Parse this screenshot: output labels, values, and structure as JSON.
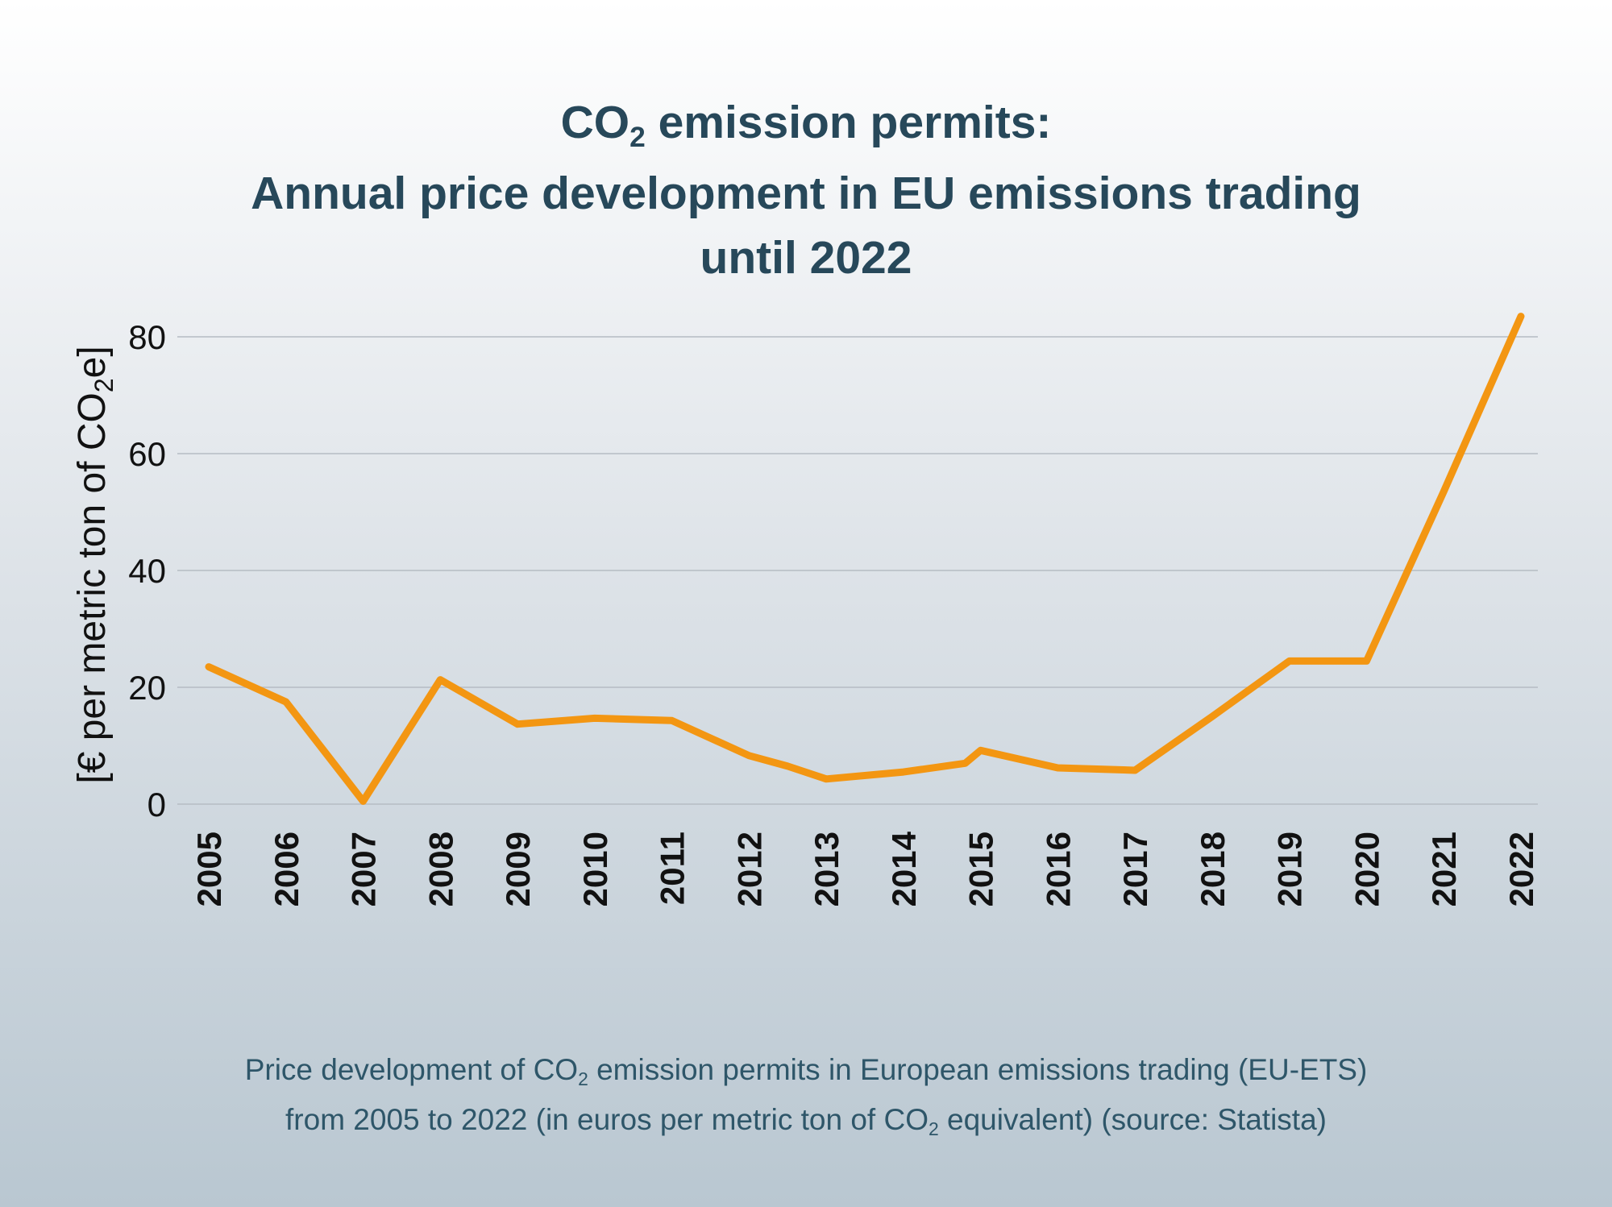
{
  "title": {
    "line1_pre": "CO",
    "line1_sub": "2",
    "line1_post": " emission permits:",
    "line2": "Annual price development in EU emissions trading",
    "line3": "until 2022"
  },
  "caption": {
    "line1_pre": "Price development of CO",
    "line1_sub": "2",
    "line1_post": " emission permits in European emissions trading (EU-ETS)",
    "line2_pre": "from 2005 to 2022 (in euros per metric ton of CO",
    "line2_sub": "2",
    "line2_post": " equivalent) (source: Statista)"
  },
  "chart_data": {
    "type": "line",
    "title": "CO2 emission permits: Annual price development in EU emissions trading until 2022",
    "ylabel_pre": "[€ per metric ton of CO",
    "ylabel_sub": "2",
    "ylabel_post": "e]",
    "xlabel": "",
    "categories": [
      "2005",
      "2006",
      "2007",
      "2008",
      "2009",
      "2010",
      "2011",
      "2012",
      "2013",
      "2014",
      "2015",
      "2016",
      "2017",
      "2018",
      "2019",
      "2020",
      "2021",
      "2022"
    ],
    "x": [
      2005,
      2006,
      2007,
      2008,
      2009,
      2010,
      2011,
      2012,
      2012.5,
      2013,
      2014,
      2014.8,
      2015,
      2016,
      2017,
      2018,
      2019,
      2020,
      2021,
      2022
    ],
    "values": [
      23.5,
      17.5,
      0.5,
      21.3,
      13.7,
      14.7,
      14.3,
      8.3,
      6.5,
      4.3,
      5.5,
      7.0,
      9.2,
      6.2,
      5.8,
      15.0,
      24.5,
      24.5,
      53.5,
      83.5
    ],
    "yticks": [
      0,
      20,
      40,
      60,
      80
    ],
    "ylim": [
      0,
      85
    ],
    "xlim": [
      2004.9,
      2022.2
    ],
    "grid": true,
    "line_color": "#f39612",
    "grid_color": "#b5bcc3"
  }
}
